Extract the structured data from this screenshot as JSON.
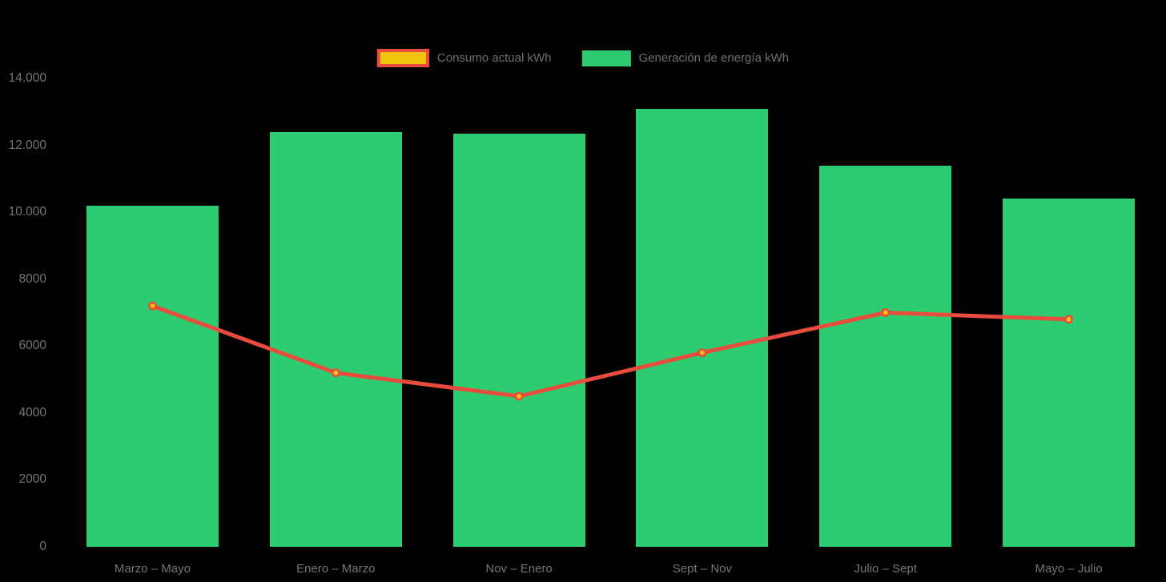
{
  "colors": {
    "background": "#000000",
    "bar": "#2ecc71",
    "line": "#e74c3c",
    "point_fill": "#f1c40f",
    "point_border": "#e74c3c",
    "axis_text": "#757575",
    "legend_text": "#6f6f6f"
  },
  "legend": {
    "items": [
      {
        "label": "Consumo actual kWh",
        "swatch_fill": "#f1c40f",
        "swatch_border": "#e74c3c",
        "series": "line"
      },
      {
        "label": "Generación de energía kWh",
        "swatch_fill": "#2ecc71",
        "series": "bar"
      }
    ]
  },
  "chart_data": {
    "type": "bar",
    "subtype": "bar-line-combo",
    "categories": [
      "Marzo – Mayo",
      "Enero – Marzo",
      "Nov – Enero",
      "Sept – Nov",
      "Julio – Sept",
      "Mayo – Julio"
    ],
    "series": [
      {
        "name": "Generación de energía kWh",
        "type": "bar",
        "color": "#2ecc71",
        "values": [
          10200,
          12400,
          12350,
          13100,
          11400,
          10400
        ]
      },
      {
        "name": "Consumo actual kWh",
        "type": "line",
        "color": "#e74c3c",
        "point_color": "#f1c40f",
        "values": [
          7200,
          5200,
          4500,
          5800,
          7000,
          6800
        ]
      }
    ],
    "ylabel": "",
    "xlabel": "",
    "ylim": [
      0,
      14000
    ],
    "ytick_step": 2000,
    "ytick_labels": [
      "0",
      "2000",
      "4000",
      "6000",
      "8000",
      "10.000",
      "12.000",
      "14.000"
    ],
    "grid": false,
    "axis_lines": false,
    "legend_position": "top-center"
  }
}
